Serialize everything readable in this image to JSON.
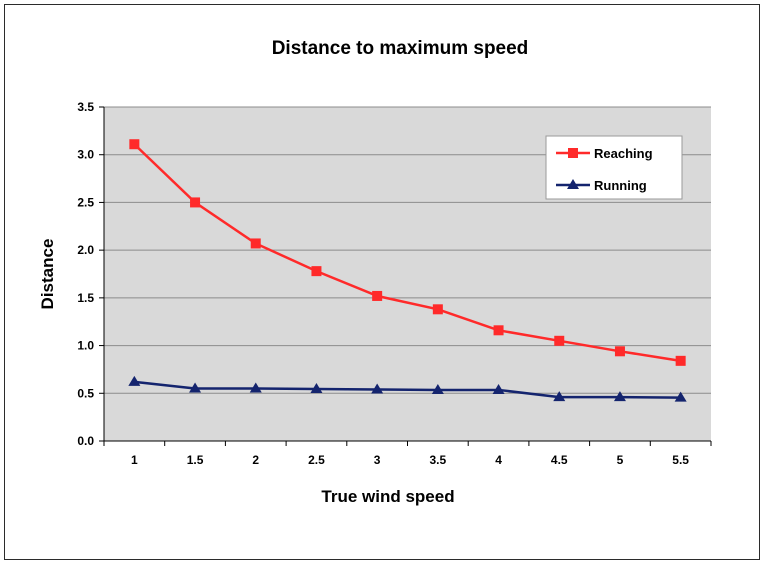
{
  "chart_data": {
    "type": "line",
    "title": "Distance to maximum speed",
    "xlabel": "True wind speed",
    "ylabel": "Distance",
    "categories": [
      "1",
      "1.5",
      "2",
      "2.5",
      "3",
      "3.5",
      "4",
      "4.5",
      "5",
      "5.5"
    ],
    "y_ticks": [
      "0.0",
      "0.5",
      "1.0",
      "1.5",
      "2.0",
      "2.5",
      "3.0",
      "3.5"
    ],
    "ylim": [
      0,
      3.5
    ],
    "grid": "horizontal",
    "legend_position": "top-right",
    "plot_background": "#d9d9d9",
    "series": [
      {
        "name": "Reaching",
        "color": "#ff2a2a",
        "marker": "square",
        "values": [
          3.11,
          2.5,
          2.07,
          1.78,
          1.52,
          1.38,
          1.16,
          1.05,
          0.94,
          0.84
        ]
      },
      {
        "name": "Running",
        "color": "#14246e",
        "marker": "triangle",
        "values": [
          0.62,
          0.55,
          0.55,
          0.545,
          0.54,
          0.535,
          0.535,
          0.46,
          0.46,
          0.455
        ]
      }
    ]
  }
}
